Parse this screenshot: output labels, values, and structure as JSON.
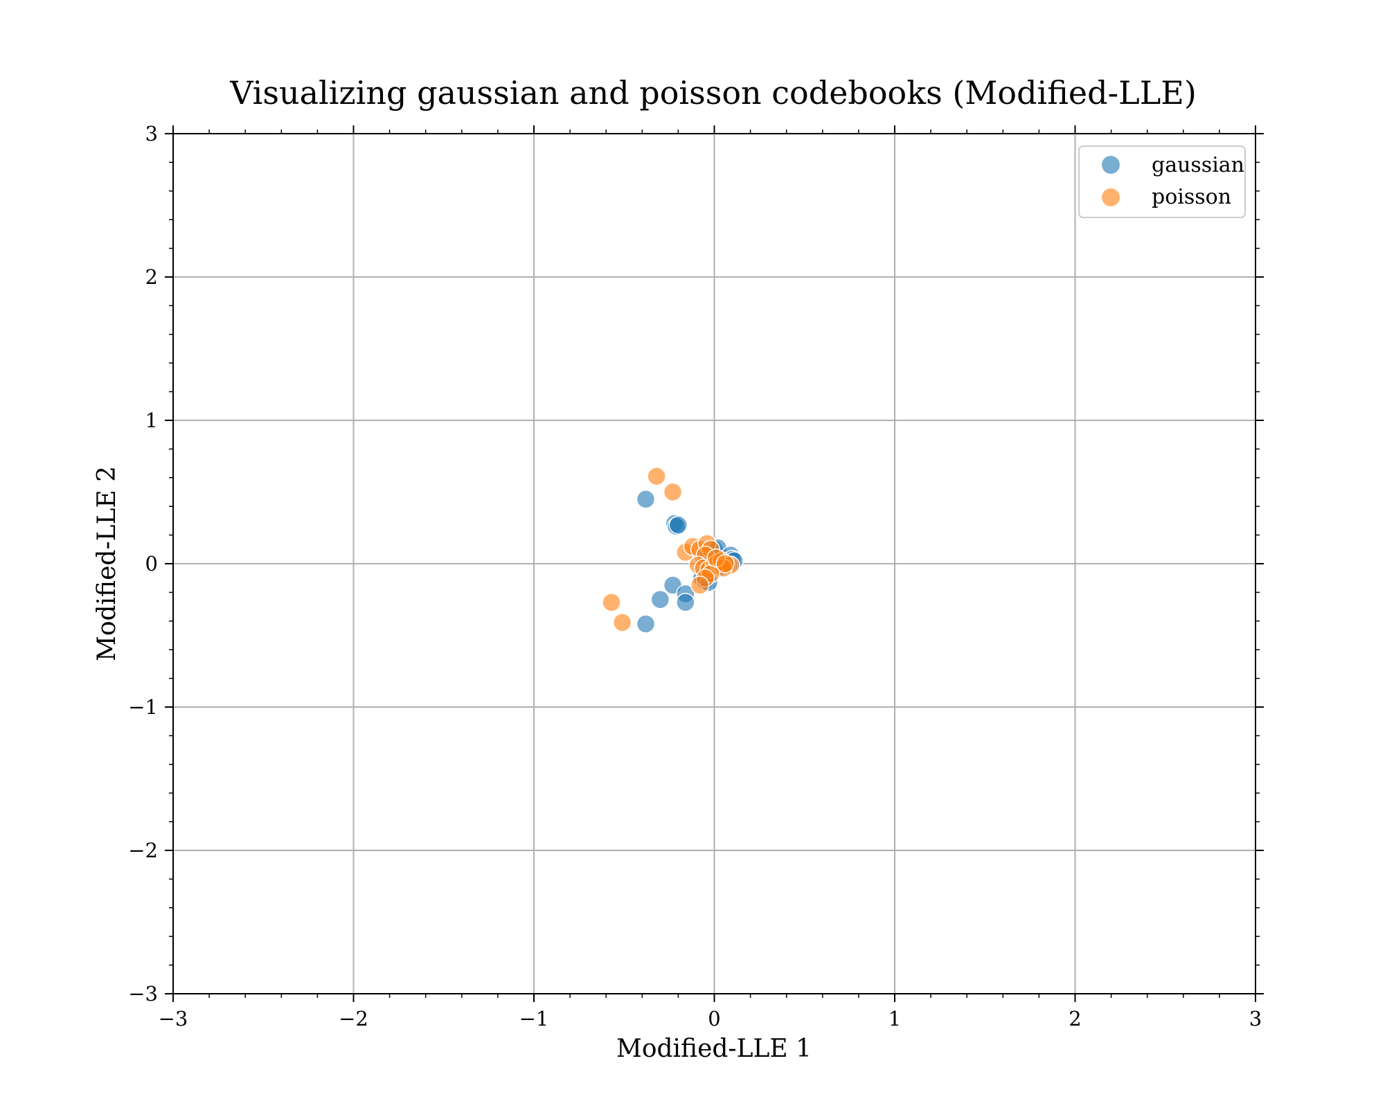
{
  "chart_data": {
    "type": "scatter",
    "title": "Visualizing gaussian and poisson codebooks (Modified-LLE)",
    "xlabel": "Modified-LLE 1",
    "ylabel": "Modified-LLE 2",
    "xlim": [
      -3,
      3
    ],
    "ylim": [
      -3,
      3
    ],
    "xticks": [
      -3,
      -2,
      -1,
      0,
      1,
      2,
      3
    ],
    "yticks": [
      -3,
      -2,
      -1,
      0,
      1,
      2,
      3
    ],
    "xtick_labels": [
      "−3",
      "−2",
      "−1",
      "0",
      "1",
      "2",
      "3"
    ],
    "ytick_labels": [
      "−3",
      "−2",
      "−1",
      "0",
      "1",
      "2",
      "3"
    ],
    "grid": true,
    "legend_position": "top-right",
    "series": [
      {
        "name": "gaussian",
        "color": "#1f77b4",
        "points": [
          [
            -0.38,
            0.45
          ],
          [
            -0.22,
            0.28
          ],
          [
            -0.21,
            0.26
          ],
          [
            -0.2,
            0.27
          ],
          [
            -0.23,
            -0.15
          ],
          [
            -0.3,
            -0.25
          ],
          [
            -0.16,
            -0.21
          ],
          [
            -0.16,
            -0.27
          ],
          [
            -0.38,
            -0.42
          ],
          [
            -0.07,
            -0.1
          ],
          [
            -0.05,
            -0.12
          ],
          [
            -0.03,
            -0.13
          ],
          [
            -0.06,
            0.05
          ],
          [
            -0.02,
            0.02
          ],
          [
            0.0,
            0.1
          ],
          [
            0.02,
            0.11
          ],
          [
            0.05,
            0.02
          ],
          [
            0.07,
            0.01
          ],
          [
            0.09,
            0.06
          ],
          [
            0.1,
            0.03
          ],
          [
            0.11,
            0.02
          ],
          [
            0.08,
            -0.01
          ],
          [
            0.04,
            -0.02
          ],
          [
            0.02,
            0.0
          ]
        ]
      },
      {
        "name": "poisson",
        "color": "#ff7f0e",
        "points": [
          [
            -0.32,
            0.61
          ],
          [
            -0.23,
            0.5
          ],
          [
            -0.16,
            0.08
          ],
          [
            -0.12,
            0.12
          ],
          [
            -0.08,
            0.1
          ],
          [
            -0.04,
            0.14
          ],
          [
            -0.02,
            0.1
          ],
          [
            -0.05,
            0.06
          ],
          [
            -0.09,
            -0.01
          ],
          [
            -0.06,
            -0.03
          ],
          [
            -0.03,
            -0.04
          ],
          [
            0.0,
            -0.01
          ],
          [
            0.02,
            0.01
          ],
          [
            0.04,
            0.02
          ],
          [
            0.07,
            -0.01
          ],
          [
            0.09,
            -0.01
          ],
          [
            0.05,
            -0.03
          ],
          [
            -0.02,
            -0.07
          ],
          [
            -0.05,
            -0.1
          ],
          [
            -0.08,
            -0.15
          ],
          [
            -0.57,
            -0.27
          ],
          [
            -0.51,
            -0.41
          ],
          [
            0.01,
            0.04
          ],
          [
            0.06,
            0.0
          ]
        ]
      }
    ]
  }
}
